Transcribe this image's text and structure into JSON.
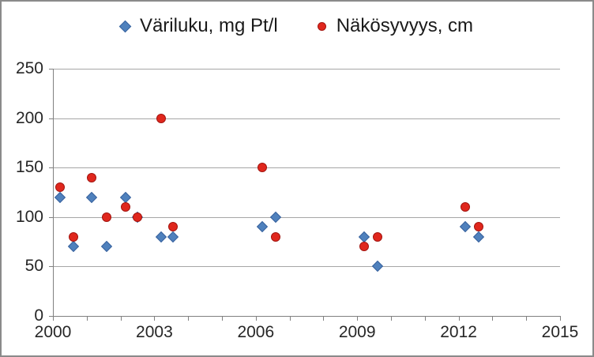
{
  "chart_data": {
    "type": "scatter",
    "title": "",
    "xlabel": "",
    "ylabel": "",
    "xlim": [
      2000,
      2015
    ],
    "ylim": [
      0,
      250
    ],
    "x_ticks": [
      2000,
      2003,
      2006,
      2009,
      2012,
      2015
    ],
    "x_minor_tick_interval": 1,
    "y_ticks": [
      0,
      50,
      100,
      150,
      200,
      250
    ],
    "grid": "horizontal",
    "legend_position": "top-center",
    "grid_color": "#a6a6a6",
    "axis_color": "#808080",
    "tick_label_color": "#262626",
    "series": [
      {
        "name": "Väriluku, mg Pt/l",
        "marker": "diamond",
        "color": "#4f81bd",
        "border_color": "#38629e",
        "points": [
          [
            2000.2,
            120
          ],
          [
            2000.6,
            70
          ],
          [
            2001.15,
            120
          ],
          [
            2001.6,
            70
          ],
          [
            2002.15,
            120
          ],
          [
            2002.5,
            100
          ],
          [
            2003.2,
            80
          ],
          [
            2003.55,
            80
          ],
          [
            2006.2,
            90
          ],
          [
            2006.6,
            100
          ],
          [
            2009.2,
            80
          ],
          [
            2009.6,
            50
          ],
          [
            2012.2,
            90
          ],
          [
            2012.6,
            80
          ]
        ]
      },
      {
        "name": "Näkösyvyys, cm",
        "marker": "circle",
        "color": "#e0271d",
        "border_color": "#a31510",
        "points": [
          [
            2000.2,
            130
          ],
          [
            2000.6,
            80
          ],
          [
            2001.15,
            140
          ],
          [
            2001.6,
            100
          ],
          [
            2002.15,
            110
          ],
          [
            2002.5,
            100
          ],
          [
            2003.2,
            200
          ],
          [
            2003.55,
            90
          ],
          [
            2006.2,
            150
          ],
          [
            2006.6,
            80
          ],
          [
            2009.2,
            70
          ],
          [
            2009.6,
            80
          ],
          [
            2012.2,
            110
          ],
          [
            2012.6,
            90
          ]
        ]
      }
    ]
  }
}
